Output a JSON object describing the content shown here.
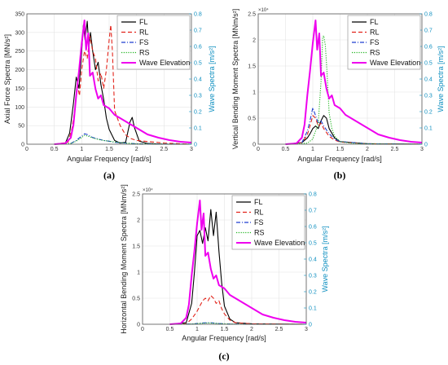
{
  "chart_data": [
    {
      "type": "line",
      "panel_label": "(a)",
      "xlabel": "Angular Frequency [rad/s]",
      "ylabel": "Axial Force Spectra [MN/s²]",
      "ylabel_right": "Wave Spectra [m/s²]",
      "xlim": [
        0,
        3
      ],
      "ylim": [
        0,
        350
      ],
      "ylim_right": [
        0,
        0.8
      ],
      "y_multiplier": "",
      "x_ticks": [
        "0",
        "0.5",
        "1",
        "1.5",
        "2",
        "2.5",
        "3"
      ],
      "y_ticks": [
        "0",
        "50",
        "100",
        "150",
        "200",
        "250",
        "300",
        "350"
      ],
      "y_ticks_right": [
        "0",
        "0.1",
        "0.2",
        "0.3",
        "0.4",
        "0.5",
        "0.6",
        "0.7",
        "0.8"
      ],
      "legend_position": "top-right",
      "legend": [
        "FL",
        "RL",
        "FS",
        "RS",
        "Wave Elevation"
      ],
      "series": [
        {
          "name": "FL",
          "color": "#000000",
          "style": "solid",
          "axis": "left",
          "x": [
            0.5,
            0.7,
            0.78,
            0.85,
            0.9,
            0.95,
            1.0,
            1.03,
            1.06,
            1.1,
            1.13,
            1.16,
            1.2,
            1.25,
            1.3,
            1.35,
            1.4,
            1.45,
            1.5,
            1.6,
            1.7,
            1.8,
            1.88,
            1.92,
            1.96,
            2.05,
            2.2,
            2.5,
            3.0
          ],
          "y": [
            0,
            2,
            30,
            110,
            180,
            150,
            250,
            320,
            280,
            330,
            260,
            300,
            250,
            200,
            220,
            160,
            120,
            70,
            40,
            10,
            3,
            5,
            60,
            72,
            45,
            8,
            2,
            0,
            0
          ]
        },
        {
          "name": "RL",
          "color": "#e2231a",
          "style": "dashed",
          "axis": "left",
          "x": [
            0.5,
            0.75,
            0.82,
            0.88,
            0.92,
            0.96,
            1.0,
            1.05,
            1.1,
            1.15,
            1.2,
            1.25,
            1.3,
            1.35,
            1.4,
            1.45,
            1.5,
            1.53,
            1.56,
            1.6,
            1.7,
            1.8,
            1.9,
            2.0,
            2.5,
            3.0
          ],
          "y": [
            0,
            5,
            40,
            100,
            160,
            130,
            200,
            250,
            230,
            290,
            250,
            230,
            170,
            190,
            150,
            200,
            280,
            320,
            250,
            90,
            50,
            25,
            15,
            10,
            3,
            0
          ]
        },
        {
          "name": "FS",
          "color": "#1f3fd0",
          "style": "dashdot",
          "axis": "left",
          "x": [
            0.5,
            0.8,
            0.9,
            1.0,
            1.05,
            1.1,
            1.15,
            1.2,
            1.3,
            1.4,
            1.5,
            1.6,
            1.8,
            2.0,
            3.0
          ],
          "y": [
            0,
            2,
            10,
            22,
            28,
            26,
            22,
            18,
            14,
            10,
            8,
            5,
            3,
            1,
            0
          ]
        },
        {
          "name": "RS",
          "color": "#1eb41e",
          "style": "dotted",
          "axis": "left",
          "x": [
            0.5,
            0.8,
            0.9,
            1.0,
            1.05,
            1.1,
            1.15,
            1.2,
            1.3,
            1.4,
            1.5,
            1.6,
            1.8,
            2.0,
            3.0
          ],
          "y": [
            0,
            2,
            8,
            18,
            24,
            22,
            20,
            17,
            13,
            10,
            8,
            6,
            3,
            1,
            0
          ]
        },
        {
          "name": "Wave Elevation",
          "color": "#ee00ee",
          "style": "solid",
          "axis": "right",
          "x": [
            0.5,
            0.7,
            0.8,
            0.85,
            0.9,
            0.95,
            1.0,
            1.05,
            1.08,
            1.12,
            1.15,
            1.2,
            1.25,
            1.3,
            1.35,
            1.4,
            1.5,
            1.6,
            1.7,
            1.8,
            1.9,
            2.0,
            2.2,
            2.4,
            2.6,
            2.8,
            3.0
          ],
          "y": [
            0,
            0.005,
            0.04,
            0.12,
            0.3,
            0.45,
            0.62,
            0.76,
            0.58,
            0.68,
            0.42,
            0.44,
            0.34,
            0.28,
            0.3,
            0.24,
            0.22,
            0.18,
            0.16,
            0.14,
            0.12,
            0.1,
            0.06,
            0.04,
            0.025,
            0.015,
            0.01
          ]
        }
      ]
    },
    {
      "type": "line",
      "panel_label": "(b)",
      "xlabel": "Angular Frequency [rad/s]",
      "ylabel": "Vertical Bending Moment Spectra [MNm/s²]",
      "ylabel_right": "Wave Spectra [m/s²]",
      "xlim": [
        0,
        3
      ],
      "ylim": [
        0,
        2.5
      ],
      "ylim_right": [
        0,
        0.8
      ],
      "y_multiplier": "×10⁴",
      "x_ticks": [
        "0",
        "0.5",
        "1",
        "1.5",
        "2",
        "2.5",
        "3"
      ],
      "y_ticks": [
        "0",
        "0.5",
        "1",
        "1.5",
        "2",
        "2.5"
      ],
      "y_ticks_right": [
        "0",
        "0.1",
        "0.2",
        "0.3",
        "0.4",
        "0.5",
        "0.6",
        "0.7",
        "0.8"
      ],
      "legend_position": "top-right",
      "legend": [
        "FL",
        "RL",
        "FS",
        "RS",
        "Wave Elevation"
      ],
      "series": [
        {
          "name": "FL",
          "color": "#000000",
          "style": "solid",
          "axis": "left",
          "x": [
            0.5,
            0.8,
            0.9,
            0.95,
            1.0,
            1.05,
            1.1,
            1.15,
            1.2,
            1.25,
            1.3,
            1.4,
            1.5,
            2.0,
            3.0
          ],
          "y": [
            0,
            0.03,
            0.12,
            0.2,
            0.3,
            0.35,
            0.3,
            0.45,
            0.55,
            0.5,
            0.3,
            0.12,
            0.05,
            0.01,
            0
          ]
        },
        {
          "name": "RL",
          "color": "#e2231a",
          "style": "dashed",
          "axis": "left",
          "x": [
            0.5,
            0.8,
            0.9,
            0.95,
            1.0,
            1.05,
            1.1,
            1.15,
            1.2,
            1.3,
            1.4,
            1.5,
            2.0,
            3.0
          ],
          "y": [
            0,
            0.03,
            0.18,
            0.35,
            0.55,
            0.5,
            0.35,
            0.4,
            0.3,
            0.15,
            0.08,
            0.04,
            0.01,
            0
          ]
        },
        {
          "name": "FS",
          "color": "#1f3fd0",
          "style": "dashdot",
          "axis": "left",
          "x": [
            0.5,
            0.8,
            0.9,
            0.95,
            1.0,
            1.05,
            1.1,
            1.15,
            1.2,
            1.3,
            1.4,
            1.5,
            2.0,
            3.0
          ],
          "y": [
            0,
            0.03,
            0.25,
            0.45,
            0.7,
            0.55,
            0.4,
            0.45,
            0.35,
            0.2,
            0.1,
            0.05,
            0.01,
            0
          ]
        },
        {
          "name": "RS",
          "color": "#1eb41e",
          "style": "dotted",
          "axis": "left",
          "x": [
            0.5,
            0.9,
            1.0,
            1.1,
            1.15,
            1.18,
            1.2,
            1.23,
            1.26,
            1.3,
            1.35,
            1.4,
            1.5,
            1.7,
            2.0,
            3.0
          ],
          "y": [
            0,
            0.02,
            0.1,
            0.4,
            1.2,
            2.05,
            2.08,
            1.9,
            1.4,
            0.6,
            0.3,
            0.15,
            0.05,
            0.02,
            0.01,
            0
          ]
        },
        {
          "name": "Wave Elevation",
          "color": "#ee00ee",
          "style": "solid",
          "axis": "right",
          "x": [
            0.5,
            0.7,
            0.8,
            0.85,
            0.9,
            0.95,
            1.0,
            1.05,
            1.08,
            1.12,
            1.15,
            1.2,
            1.25,
            1.3,
            1.35,
            1.4,
            1.5,
            1.6,
            1.7,
            1.8,
            1.9,
            2.0,
            2.2,
            2.4,
            2.6,
            2.8,
            3.0
          ],
          "y": [
            0,
            0.005,
            0.04,
            0.12,
            0.3,
            0.45,
            0.62,
            0.76,
            0.58,
            0.68,
            0.42,
            0.44,
            0.34,
            0.28,
            0.3,
            0.24,
            0.22,
            0.18,
            0.16,
            0.14,
            0.12,
            0.1,
            0.06,
            0.04,
            0.025,
            0.015,
            0.01
          ]
        }
      ]
    },
    {
      "type": "line",
      "panel_label": "(c)",
      "xlabel": "Angular Frequency [rad/s]",
      "ylabel": "Horizontal Bending Moment Spectra [MNm/s²]",
      "ylabel_right": "Wave Spectra [m/s²]",
      "xlim": [
        0,
        3
      ],
      "ylim": [
        0,
        2.5
      ],
      "ylim_right": [
        0,
        0.8
      ],
      "y_multiplier": "×10⁴",
      "x_ticks": [
        "0",
        "0.5",
        "1",
        "1.5",
        "2",
        "2.5",
        "3"
      ],
      "y_ticks": [
        "0",
        "0.5",
        "1",
        "1.5",
        "2",
        "2.5"
      ],
      "y_ticks_right": [
        "0",
        "0.1",
        "0.2",
        "0.3",
        "0.4",
        "0.5",
        "0.6",
        "0.7",
        "0.8"
      ],
      "legend_position": "top-right",
      "legend": [
        "FL",
        "RL",
        "FS",
        "RS",
        "Wave Elevation"
      ],
      "series": [
        {
          "name": "FL",
          "color": "#000000",
          "style": "solid",
          "axis": "left",
          "x": [
            0.5,
            0.8,
            0.9,
            0.95,
            1.0,
            1.05,
            1.1,
            1.15,
            1.2,
            1.25,
            1.3,
            1.35,
            1.4,
            1.45,
            1.5,
            1.6,
            1.7,
            2.0,
            3.0
          ],
          "y": [
            0,
            0.03,
            0.4,
            1.0,
            1.7,
            1.8,
            1.55,
            1.85,
            1.6,
            2.2,
            1.7,
            2.15,
            1.4,
            0.8,
            0.35,
            0.1,
            0.03,
            0.01,
            0
          ]
        },
        {
          "name": "RL",
          "color": "#e2231a",
          "style": "dashed",
          "axis": "left",
          "x": [
            0.5,
            0.8,
            0.9,
            1.0,
            1.1,
            1.15,
            1.2,
            1.25,
            1.3,
            1.35,
            1.4,
            1.45,
            1.5,
            1.6,
            1.7,
            2.0,
            3.0
          ],
          "y": [
            0,
            0.01,
            0.1,
            0.25,
            0.45,
            0.5,
            0.45,
            0.55,
            0.5,
            0.4,
            0.45,
            0.3,
            0.2,
            0.08,
            0.03,
            0.01,
            0
          ]
        },
        {
          "name": "FS",
          "color": "#1f3fd0",
          "style": "dashdot",
          "axis": "left",
          "x": [
            0.5,
            0.9,
            1.0,
            1.1,
            1.2,
            1.3,
            1.4,
            1.6,
            2.0,
            3.0
          ],
          "y": [
            0,
            0.005,
            0.015,
            0.025,
            0.03,
            0.025,
            0.015,
            0.005,
            0,
            0
          ]
        },
        {
          "name": "RS",
          "color": "#1eb41e",
          "style": "dotted",
          "axis": "left",
          "x": [
            0.5,
            0.9,
            1.0,
            1.1,
            1.2,
            1.3,
            1.4,
            1.6,
            2.0,
            3.0
          ],
          "y": [
            0,
            0.005,
            0.012,
            0.02,
            0.025,
            0.02,
            0.012,
            0.005,
            0,
            0
          ]
        },
        {
          "name": "Wave Elevation",
          "color": "#ee00ee",
          "style": "solid",
          "axis": "right",
          "x": [
            0.5,
            0.7,
            0.8,
            0.85,
            0.9,
            0.95,
            1.0,
            1.05,
            1.08,
            1.12,
            1.15,
            1.2,
            1.25,
            1.3,
            1.35,
            1.4,
            1.5,
            1.6,
            1.7,
            1.8,
            1.9,
            2.0,
            2.2,
            2.4,
            2.6,
            2.8,
            3.0
          ],
          "y": [
            0,
            0.005,
            0.04,
            0.12,
            0.3,
            0.45,
            0.62,
            0.76,
            0.58,
            0.68,
            0.42,
            0.44,
            0.34,
            0.28,
            0.3,
            0.24,
            0.22,
            0.18,
            0.16,
            0.14,
            0.12,
            0.1,
            0.06,
            0.04,
            0.025,
            0.015,
            0.01
          ]
        }
      ]
    }
  ]
}
